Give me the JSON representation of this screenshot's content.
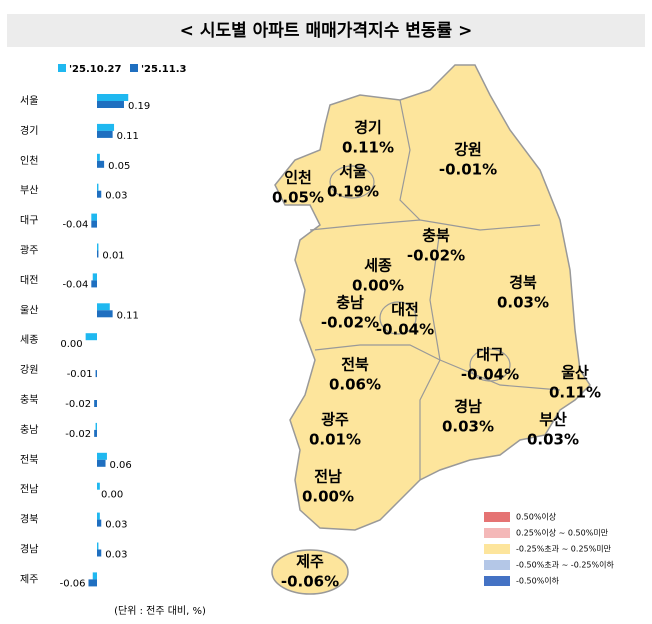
{
  "chart_data": [
    {
      "type": "hbar",
      "title": "< 시도별 아파트 매매가격지수 변동률 >",
      "unit_note": "(단위 : 전주 대비, %)",
      "categories": [
        "서울",
        "경기",
        "인천",
        "부산",
        "대구",
        "광주",
        "대전",
        "울산",
        "세종",
        "강원",
        "충북",
        "충남",
        "전북",
        "전남",
        "경북",
        "경남",
        "제주"
      ],
      "series": [
        {
          "name": "'25.10.27",
          "color": "#1fb8f0",
          "values": [
            0.22,
            0.12,
            0.02,
            0.01,
            -0.04,
            0.01,
            -0.03,
            0.09,
            -0.08,
            0.0,
            0.0,
            -0.01,
            0.07,
            0.02,
            0.02,
            0.01,
            -0.03
          ]
        },
        {
          "name": "'25.11.3",
          "color": "#1f6fc0",
          "values": [
            0.19,
            0.11,
            0.05,
            0.03,
            -0.04,
            0.01,
            -0.04,
            0.11,
            0.0,
            -0.01,
            -0.02,
            -0.02,
            0.06,
            0.0,
            0.03,
            0.03,
            -0.06
          ],
          "value_labels": [
            "0.19",
            "0.11",
            "0.05",
            "0.03",
            "-0.04",
            "0.01",
            "-0.04",
            "0.11",
            "0.00",
            "-0.01",
            "-0.02",
            "-0.02",
            "0.06",
            "0.00",
            "0.03",
            "0.03",
            "-0.06"
          ]
        }
      ],
      "xlim": [
        -0.08,
        0.23
      ]
    },
    {
      "type": "map",
      "color": "#fde59c",
      "regions": [
        "서울",
        "경기",
        "인천",
        "부산",
        "대구",
        "광주",
        "대전",
        "울산",
        "세종",
        "강원",
        "충북",
        "충남",
        "전북",
        "전남",
        "경북",
        "경남",
        "제주"
      ],
      "values": [
        0.19,
        0.11,
        0.05,
        0.03,
        -0.04,
        0.01,
        -0.04,
        0.11,
        0.0,
        -0.01,
        -0.02,
        -0.02,
        0.06,
        0.0,
        0.03,
        0.03,
        -0.06
      ],
      "value_labels": [
        "0.19%",
        "0.11%",
        "0.05%",
        "0.03%",
        "-0.04%",
        "0.01%",
        "-0.04%",
        "0.11%",
        "0.00%",
        "-0.01%",
        "-0.02%",
        "-0.02%",
        "0.06%",
        "0.00%",
        "0.03%",
        "0.03%",
        "-0.06%"
      ],
      "legend": [
        {
          "label": "0.50%이상",
          "color": "#e57373"
        },
        {
          "label": "0.25%이상 ~ 0.50%미만",
          "color": "#f4b8b8"
        },
        {
          "label": "-0.25%초과 ~ 0.25%미만",
          "color": "#fde59c"
        },
        {
          "label": "-0.50%초과 ~ -0.25%이하",
          "color": "#b4c7e7"
        },
        {
          "label": "-0.50%이하",
          "color": "#4472c4"
        }
      ]
    }
  ]
}
